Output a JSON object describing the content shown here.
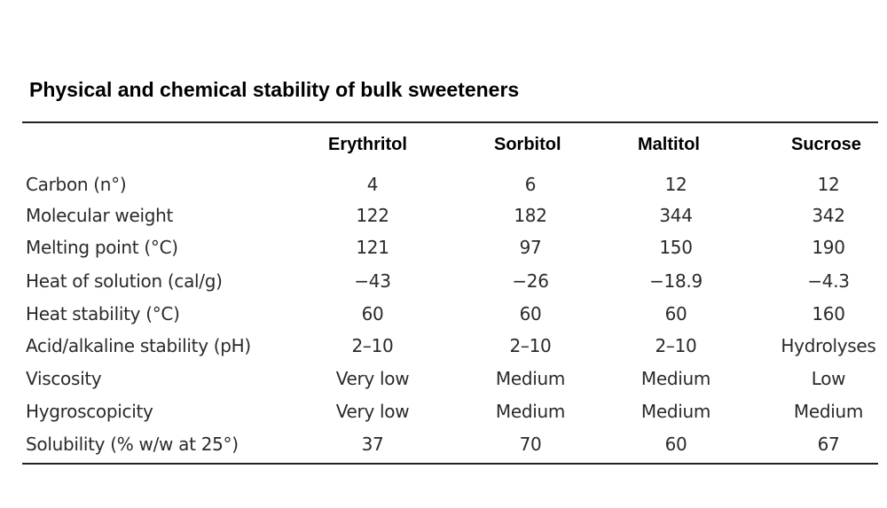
{
  "title": "Physical and chemical stability of bulk sweeteners",
  "table": {
    "columns": [
      "Erythritol",
      "Sorbitol",
      "Maltitol",
      "Sucrose"
    ],
    "rows": [
      {
        "label": "Carbon (n°)",
        "values": [
          "4",
          "6",
          "12",
          "12"
        ]
      },
      {
        "label": "Molecular weight",
        "values": [
          "122",
          "182",
          "344",
          "342"
        ]
      },
      {
        "label": "Melting point (°C)",
        "values": [
          "121",
          "97",
          "150",
          "190"
        ]
      },
      {
        "label": "Heat of solution (cal/g)",
        "values": [
          "−43",
          "−26",
          "−18.9",
          "−4.3"
        ]
      },
      {
        "label": "Heat stability (°C)",
        "values": [
          "60",
          "60",
          "60",
          "160"
        ]
      },
      {
        "label": "Acid/alkaline stability (pH)",
        "values": [
          "2–10",
          "2–10",
          "2–10",
          "Hydrolyses"
        ]
      },
      {
        "label": "Viscosity",
        "values": [
          "Very low",
          "Medium",
          "Medium",
          "Low"
        ]
      },
      {
        "label": "Hygroscopicity",
        "values": [
          "Very low",
          "Medium",
          "Medium",
          "Medium"
        ]
      },
      {
        "label": "Solubility (% w/w at 25°)",
        "values": [
          "37",
          "70",
          "60",
          "67"
        ]
      }
    ]
  }
}
